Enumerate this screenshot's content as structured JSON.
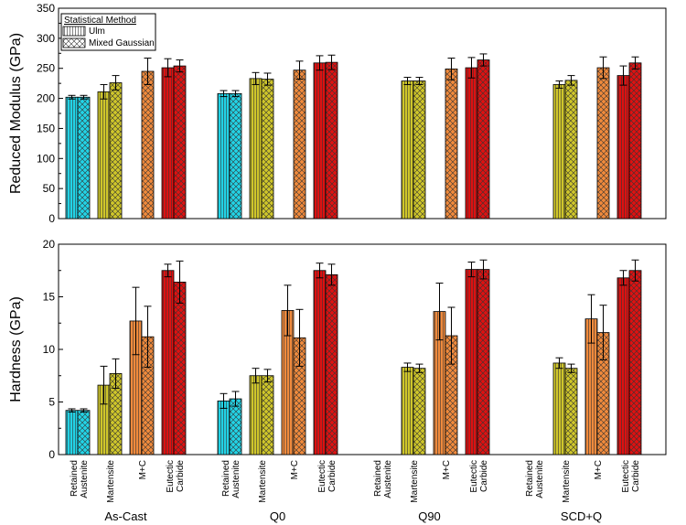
{
  "chart_data": [
    {
      "type": "bar",
      "ylabel": "Reduced Modulus (GPa)",
      "ylim": [
        0,
        350
      ],
      "yticks": [
        0,
        50,
        100,
        150,
        200,
        250,
        300,
        350
      ],
      "legend": {
        "title": "Statistical Method",
        "entries": [
          {
            "name": "Ulm",
            "pattern": "vertical-lines"
          },
          {
            "name": "Mixed Gaussian",
            "pattern": "crosshatch"
          }
        ],
        "position": "top-left"
      },
      "groups": [
        "As-Cast",
        "Q0",
        "Q90",
        "SCD+Q"
      ],
      "phases": [
        {
          "name": "Retained Austenite",
          "color": "#22d3e6"
        },
        {
          "name": "Martensite",
          "color": "#cfc62a"
        },
        {
          "name": "M+C",
          "color": "#f08a3c"
        },
        {
          "name": "Eutectic Carbide",
          "color": "#dd1111"
        }
      ],
      "bars": [
        {
          "group": 0,
          "phase": 0,
          "method": "Ulm",
          "value": 202,
          "error": 3
        },
        {
          "group": 0,
          "phase": 0,
          "method": "Mixed Gaussian",
          "value": 202,
          "error": 3
        },
        {
          "group": 0,
          "phase": 1,
          "method": "Ulm",
          "value": 211,
          "error": 12
        },
        {
          "group": 0,
          "phase": 1,
          "method": "Mixed Gaussian",
          "value": 226,
          "error": 12
        },
        {
          "group": 0,
          "phase": 2,
          "method": "Mixed Gaussian",
          "value": 245,
          "error": 22
        },
        {
          "group": 0,
          "phase": 3,
          "method": "Ulm",
          "value": 251,
          "error": 15
        },
        {
          "group": 0,
          "phase": 3,
          "method": "Mixed Gaussian",
          "value": 254,
          "error": 10
        },
        {
          "group": 1,
          "phase": 0,
          "method": "Ulm",
          "value": 208,
          "error": 5
        },
        {
          "group": 1,
          "phase": 0,
          "method": "Mixed Gaussian",
          "value": 208,
          "error": 5
        },
        {
          "group": 1,
          "phase": 1,
          "method": "Ulm",
          "value": 233,
          "error": 10
        },
        {
          "group": 1,
          "phase": 1,
          "method": "Mixed Gaussian",
          "value": 232,
          "error": 10
        },
        {
          "group": 1,
          "phase": 2,
          "method": "Mixed Gaussian",
          "value": 247,
          "error": 15
        },
        {
          "group": 1,
          "phase": 3,
          "method": "Ulm",
          "value": 259,
          "error": 12
        },
        {
          "group": 1,
          "phase": 3,
          "method": "Mixed Gaussian",
          "value": 260,
          "error": 12
        },
        {
          "group": 2,
          "phase": 1,
          "method": "Ulm",
          "value": 229,
          "error": 6
        },
        {
          "group": 2,
          "phase": 1,
          "method": "Mixed Gaussian",
          "value": 229,
          "error": 6
        },
        {
          "group": 2,
          "phase": 2,
          "method": "Mixed Gaussian",
          "value": 249,
          "error": 18
        },
        {
          "group": 2,
          "phase": 3,
          "method": "Ulm",
          "value": 251,
          "error": 17
        },
        {
          "group": 2,
          "phase": 3,
          "method": "Mixed Gaussian",
          "value": 264,
          "error": 10
        },
        {
          "group": 3,
          "phase": 1,
          "method": "Ulm",
          "value": 223,
          "error": 6
        },
        {
          "group": 3,
          "phase": 1,
          "method": "Mixed Gaussian",
          "value": 230,
          "error": 8
        },
        {
          "group": 3,
          "phase": 2,
          "method": "Mixed Gaussian",
          "value": 251,
          "error": 18
        },
        {
          "group": 3,
          "phase": 3,
          "method": "Ulm",
          "value": 238,
          "error": 16
        },
        {
          "group": 3,
          "phase": 3,
          "method": "Mixed Gaussian",
          "value": 259,
          "error": 10
        }
      ]
    },
    {
      "type": "bar",
      "ylabel": "Hardness (GPa)",
      "ylim": [
        0,
        20
      ],
      "yticks": [
        0,
        5,
        10,
        15,
        20
      ],
      "groups": [
        "As-Cast",
        "Q0",
        "Q90",
        "SCD+Q"
      ],
      "category_labels": [
        [
          "Retained",
          "Austenite"
        ],
        [
          "Martensite"
        ],
        [
          "M+C"
        ],
        [
          "Eutectic",
          "Carbide"
        ]
      ],
      "bars": [
        {
          "group": 0,
          "phase": 0,
          "method": "Ulm",
          "value": 4.2,
          "error": 0.15
        },
        {
          "group": 0,
          "phase": 0,
          "method": "Mixed Gaussian",
          "value": 4.2,
          "error": 0.15
        },
        {
          "group": 0,
          "phase": 1,
          "method": "Ulm",
          "value": 6.6,
          "error": 1.8
        },
        {
          "group": 0,
          "phase": 1,
          "method": "Mixed Gaussian",
          "value": 7.7,
          "error": 1.4
        },
        {
          "group": 0,
          "phase": 2,
          "method": "Ulm",
          "value": 12.7,
          "error": 3.2
        },
        {
          "group": 0,
          "phase": 2,
          "method": "Mixed Gaussian",
          "value": 11.2,
          "error": 2.9
        },
        {
          "group": 0,
          "phase": 3,
          "method": "Ulm",
          "value": 17.5,
          "error": 0.6
        },
        {
          "group": 0,
          "phase": 3,
          "method": "Mixed Gaussian",
          "value": 16.4,
          "error": 2.0
        },
        {
          "group": 1,
          "phase": 0,
          "method": "Ulm",
          "value": 5.1,
          "error": 0.7
        },
        {
          "group": 1,
          "phase": 0,
          "method": "Mixed Gaussian",
          "value": 5.3,
          "error": 0.7
        },
        {
          "group": 1,
          "phase": 1,
          "method": "Ulm",
          "value": 7.5,
          "error": 0.7
        },
        {
          "group": 1,
          "phase": 1,
          "method": "Mixed Gaussian",
          "value": 7.5,
          "error": 0.6
        },
        {
          "group": 1,
          "phase": 2,
          "method": "Ulm",
          "value": 13.7,
          "error": 2.4
        },
        {
          "group": 1,
          "phase": 2,
          "method": "Mixed Gaussian",
          "value": 11.1,
          "error": 2.7
        },
        {
          "group": 1,
          "phase": 3,
          "method": "Ulm",
          "value": 17.5,
          "error": 0.7
        },
        {
          "group": 1,
          "phase": 3,
          "method": "Mixed Gaussian",
          "value": 17.1,
          "error": 1.0
        },
        {
          "group": 2,
          "phase": 1,
          "method": "Ulm",
          "value": 8.3,
          "error": 0.4
        },
        {
          "group": 2,
          "phase": 1,
          "method": "Mixed Gaussian",
          "value": 8.2,
          "error": 0.4
        },
        {
          "group": 2,
          "phase": 2,
          "method": "Ulm",
          "value": 13.6,
          "error": 2.7
        },
        {
          "group": 2,
          "phase": 2,
          "method": "Mixed Gaussian",
          "value": 11.3,
          "error": 2.7
        },
        {
          "group": 2,
          "phase": 3,
          "method": "Ulm",
          "value": 17.6,
          "error": 0.7
        },
        {
          "group": 2,
          "phase": 3,
          "method": "Mixed Gaussian",
          "value": 17.6,
          "error": 0.9
        },
        {
          "group": 3,
          "phase": 1,
          "method": "Ulm",
          "value": 8.7,
          "error": 0.5
        },
        {
          "group": 3,
          "phase": 1,
          "method": "Mixed Gaussian",
          "value": 8.2,
          "error": 0.4
        },
        {
          "group": 3,
          "phase": 2,
          "method": "Ulm",
          "value": 12.9,
          "error": 2.3
        },
        {
          "group": 3,
          "phase": 2,
          "method": "Mixed Gaussian",
          "value": 11.6,
          "error": 2.6
        },
        {
          "group": 3,
          "phase": 3,
          "method": "Ulm",
          "value": 16.8,
          "error": 0.7
        },
        {
          "group": 3,
          "phase": 3,
          "method": "Mixed Gaussian",
          "value": 17.5,
          "error": 1.0
        }
      ]
    }
  ]
}
